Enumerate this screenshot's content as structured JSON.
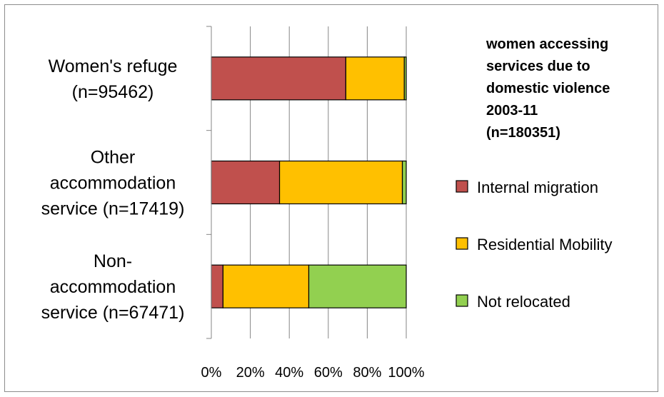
{
  "chart_data": {
    "type": "bar",
    "orientation": "horizontal",
    "stacked": "percent",
    "title": "",
    "xlabel": "",
    "ylabel": "",
    "categories": [
      [
        "Women's refuge",
        "(n=95462)"
      ],
      [
        "Other",
        "accommodation",
        "service (n=17419)"
      ],
      [
        "Non-",
        "accommodation",
        "service (n=67471)"
      ]
    ],
    "series": [
      {
        "name": "Internal migration",
        "color": "#c0504d",
        "values": [
          69,
          35,
          6
        ]
      },
      {
        "name": "Residential Mobility",
        "color": "#ffc000",
        "values": [
          30,
          63,
          44
        ]
      },
      {
        "name": "Not relocated",
        "color": "#92d050",
        "values": [
          1,
          2,
          50
        ]
      }
    ],
    "xlim": [
      0,
      100
    ],
    "xticks": [
      "0%",
      "20%",
      "40%",
      "60%",
      "80%",
      "100%"
    ],
    "grid": true,
    "legend": {
      "title": [
        "women accessing",
        "services due to",
        "domestic violence",
        "2003-11",
        "(n=180351)"
      ],
      "placement": "right"
    }
  }
}
